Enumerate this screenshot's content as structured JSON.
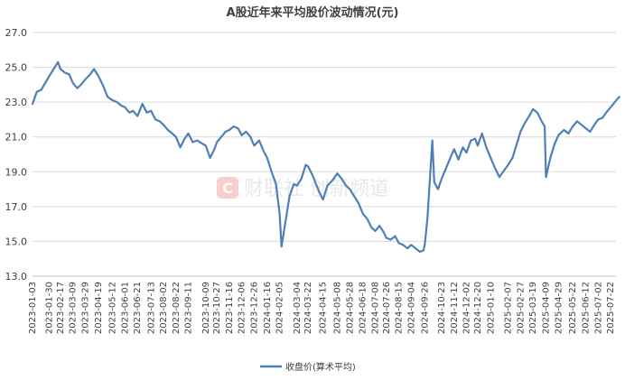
{
  "chart_data": {
    "type": "line",
    "title": "A股近年来平均股价波动情况(元)",
    "xlabel": "",
    "ylabel": "",
    "ylim": [
      13.0,
      27.0
    ],
    "yticks": [
      "13.0",
      "15.0",
      "17.0",
      "19.0",
      "21.0",
      "23.0",
      "25.0",
      "27.0"
    ],
    "grid": true,
    "legend_position": "bottom",
    "x_tick_labels": [
      "2023-01-03",
      "2023-01-30",
      "2023-02-17",
      "2023-03-09",
      "2023-03-29",
      "2023-04-19",
      "2023-05-12",
      "2023-06-01",
      "2023-06-21",
      "2023-07-13",
      "2023-08-02",
      "2023-08-22",
      "2023-09-11",
      "2023-10-09",
      "2023-10-27",
      "2023-11-16",
      "2023-12-06",
      "2023-12-26",
      "2024-01-16",
      "2024-02-05",
      "2024-03-04",
      "2024-03-22",
      "2024-04-15",
      "2024-05-08",
      "2024-05-28",
      "2024-06-18",
      "2024-07-08",
      "2024-07-26",
      "2024-08-15",
      "2024-09-04",
      "2024-09-26",
      "2024-10-23",
      "2024-11-12",
      "2024-12-02",
      "2024-12-20",
      "2025-01-10",
      "2025-02-07",
      "2025-02-27",
      "2025-03-19",
      "2025-04-09",
      "2025-04-29",
      "2025-05-22",
      "2025-06-12",
      "2025-07-02",
      "2025-07-22"
    ],
    "series": [
      {
        "name": "收盘价(算术平均)",
        "color": "#4f7fb8",
        "x": [
          "2023-01-03",
          "2023-01-10",
          "2023-01-17",
          "2023-01-30",
          "2023-02-06",
          "2023-02-13",
          "2023-02-17",
          "2023-02-24",
          "2023-03-03",
          "2023-03-09",
          "2023-03-16",
          "2023-03-22",
          "2023-03-29",
          "2023-04-06",
          "2023-04-12",
          "2023-04-19",
          "2023-04-26",
          "2023-05-04",
          "2023-05-12",
          "2023-05-19",
          "2023-05-26",
          "2023-06-01",
          "2023-06-08",
          "2023-06-14",
          "2023-06-21",
          "2023-06-29",
          "2023-07-06",
          "2023-07-13",
          "2023-07-20",
          "2023-07-27",
          "2023-08-02",
          "2023-08-09",
          "2023-08-16",
          "2023-08-22",
          "2023-08-29",
          "2023-09-05",
          "2023-09-11",
          "2023-09-18",
          "2023-09-25",
          "2023-10-09",
          "2023-10-16",
          "2023-10-23",
          "2023-10-27",
          "2023-11-03",
          "2023-11-10",
          "2023-11-16",
          "2023-11-23",
          "2023-11-30",
          "2023-12-06",
          "2023-12-13",
          "2023-12-20",
          "2023-12-26",
          "2024-01-03",
          "2024-01-10",
          "2024-01-16",
          "2024-01-23",
          "2024-01-30",
          "2024-02-05",
          "2024-02-08",
          "2024-02-21",
          "2024-02-28",
          "2024-03-04",
          "2024-03-11",
          "2024-03-18",
          "2024-03-22",
          "2024-03-29",
          "2024-04-08",
          "2024-04-15",
          "2024-04-22",
          "2024-04-30",
          "2024-05-08",
          "2024-05-15",
          "2024-05-22",
          "2024-05-28",
          "2024-06-04",
          "2024-06-11",
          "2024-06-18",
          "2024-06-25",
          "2024-07-02",
          "2024-07-08",
          "2024-07-15",
          "2024-07-22",
          "2024-07-26",
          "2024-08-02",
          "2024-08-09",
          "2024-08-15",
          "2024-08-22",
          "2024-08-29",
          "2024-09-04",
          "2024-09-11",
          "2024-09-18",
          "2024-09-24",
          "2024-09-26",
          "2024-09-30",
          "2024-10-08",
          "2024-10-11",
          "2024-10-17",
          "2024-10-23",
          "2024-10-30",
          "2024-11-06",
          "2024-11-12",
          "2024-11-19",
          "2024-11-26",
          "2024-12-02",
          "2024-12-09",
          "2024-12-16",
          "2024-12-20",
          "2024-12-27",
          "2025-01-03",
          "2025-01-10",
          "2025-01-17",
          "2025-01-24",
          "2025-02-07",
          "2025-02-14",
          "2025-02-21",
          "2025-02-27",
          "2025-03-06",
          "2025-03-13",
          "2025-03-19",
          "2025-03-26",
          "2025-04-02",
          "2025-04-07",
          "2025-04-09",
          "2025-04-16",
          "2025-04-23",
          "2025-04-29",
          "2025-05-08",
          "2025-05-15",
          "2025-05-22",
          "2025-05-29",
          "2025-06-05",
          "2025-06-12",
          "2025-06-19",
          "2025-06-26",
          "2025-07-02",
          "2025-07-09",
          "2025-07-15",
          "2025-07-22",
          "2025-07-29",
          "2025-08-05"
        ],
        "values": [
          22.9,
          23.6,
          23.7,
          24.5,
          24.9,
          25.3,
          24.9,
          24.7,
          24.6,
          24.1,
          23.8,
          24.0,
          24.3,
          24.6,
          24.9,
          24.5,
          24.0,
          23.3,
          23.1,
          23.0,
          22.8,
          22.7,
          22.4,
          22.5,
          22.2,
          22.9,
          22.4,
          22.5,
          22.0,
          21.9,
          21.7,
          21.4,
          21.2,
          21.0,
          20.4,
          20.9,
          21.2,
          20.7,
          20.8,
          20.5,
          19.8,
          20.3,
          20.7,
          21.0,
          21.3,
          21.4,
          21.6,
          21.5,
          21.1,
          21.3,
          21.0,
          20.5,
          20.8,
          20.2,
          19.8,
          19.0,
          18.3,
          16.6,
          14.7,
          17.6,
          18.3,
          18.2,
          18.6,
          19.4,
          19.3,
          18.8,
          17.9,
          17.4,
          18.2,
          18.5,
          18.9,
          18.6,
          18.2,
          18.0,
          17.6,
          17.2,
          16.6,
          16.3,
          15.8,
          15.6,
          15.9,
          15.5,
          15.2,
          15.1,
          15.3,
          14.9,
          14.8,
          14.6,
          14.8,
          14.6,
          14.4,
          14.5,
          14.9,
          16.3,
          20.8,
          18.4,
          18.0,
          18.6,
          19.2,
          19.8,
          20.3,
          19.7,
          20.4,
          20.1,
          20.8,
          20.9,
          20.5,
          21.2,
          20.4,
          19.8,
          19.2,
          18.7,
          19.4,
          19.8,
          20.6,
          21.3,
          21.8,
          22.2,
          22.6,
          22.4,
          21.9,
          21.6,
          18.7,
          19.8,
          20.6,
          21.1,
          21.4,
          21.2,
          21.6,
          21.9,
          21.7,
          21.5,
          21.3,
          21.7,
          22.0,
          22.1,
          22.4,
          22.7,
          23.0,
          23.3
        ]
      }
    ]
  },
  "legend": {
    "label": "收盘价(算术平均)"
  },
  "watermark": {
    "text": "财联社 创新频道",
    "logo_icon": "cls-logo-icon"
  }
}
